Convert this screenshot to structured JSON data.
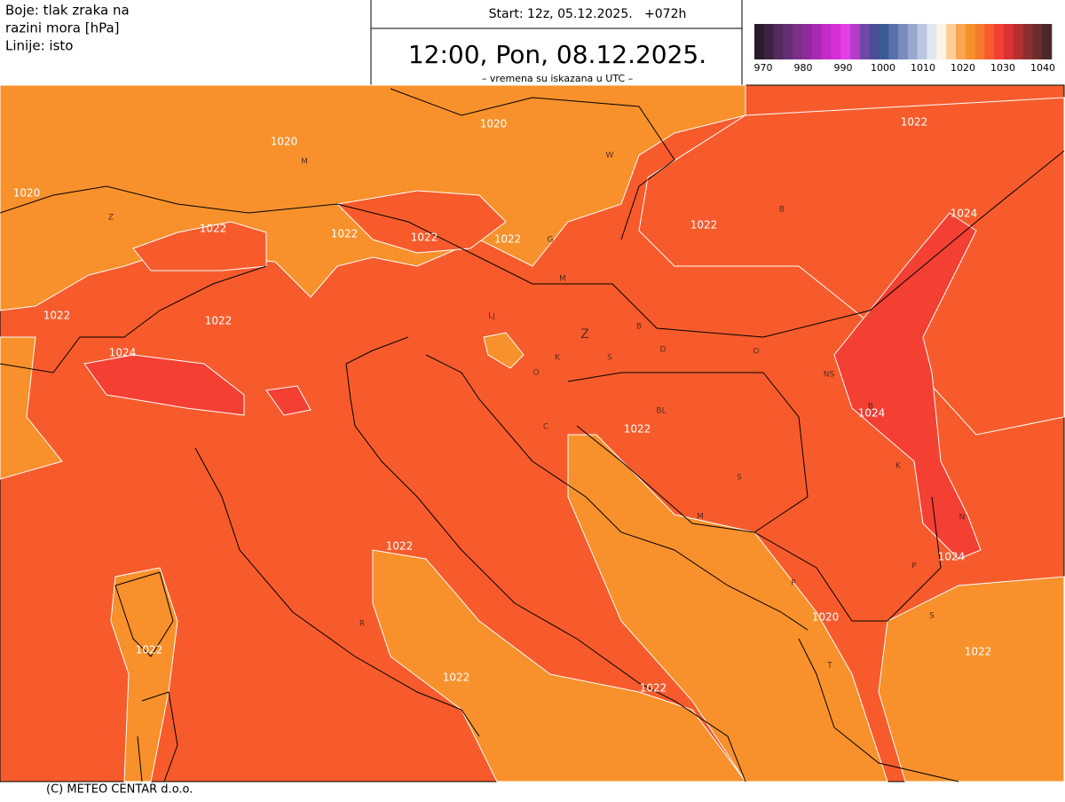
{
  "header": {
    "legend_text": [
      "Boje: tlak zraka na",
      "razini mora [hPa]",
      "Linije: isto"
    ],
    "run": "Start: 12z, 05.12.2025.   +072h",
    "valid_time": "12:00, Pon, 08.12.2025.",
    "note": "– vremena su iskazana u UTC –"
  },
  "scale": {
    "colors": [
      "#2a1a2e",
      "#3d2342",
      "#522a5c",
      "#662f74",
      "#7a2f88",
      "#902a9c",
      "#a82ab2",
      "#c22bc8",
      "#d82ed8",
      "#e63ee6",
      "#b43cc8",
      "#6e48a6",
      "#4a4e92",
      "#3c5a96",
      "#5a70aa",
      "#7a8cbe",
      "#9aa8cf",
      "#bcc6e0",
      "#dfe6f2",
      "#fff4e6",
      "#fbcf9a",
      "#f9a653",
      "#f8912b",
      "#f77a2c",
      "#f75b2c",
      "#f43f33",
      "#d83232",
      "#b33030",
      "#8e2f2f",
      "#6d2c2c",
      "#4d2828"
    ],
    "ticks": [
      970,
      980,
      990,
      1000,
      1010,
      1020,
      1030,
      1040
    ]
  },
  "map": {
    "isobar_labels": [
      1020,
      1020,
      1022,
      1020,
      1022,
      1022,
      1022,
      1022,
      1022,
      1024,
      1022,
      1022,
      1024,
      1024,
      1022,
      1022,
      1024,
      1020,
      1022,
      1022,
      1022,
      1022
    ],
    "place_labels": [
      "M",
      "W",
      "Z",
      "B",
      "G",
      "M",
      "Lj",
      "Z",
      "B",
      "D",
      "O",
      "K",
      "S",
      "O",
      "NS",
      "BL",
      "B",
      "C",
      "K",
      "S",
      "M",
      "N",
      "P",
      "P",
      "S",
      "R",
      "T"
    ]
  },
  "footer": "(C) METEO CENTAR d.o.o."
}
